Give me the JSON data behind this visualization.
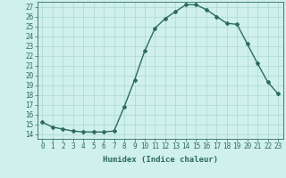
{
  "xlabel": "Humidex (Indice chaleur)",
  "x": [
    0,
    1,
    2,
    3,
    4,
    5,
    6,
    7,
    8,
    9,
    10,
    11,
    12,
    13,
    14,
    15,
    16,
    17,
    18,
    19,
    20,
    21,
    22,
    23
  ],
  "y": [
    15.2,
    14.7,
    14.5,
    14.3,
    14.2,
    14.2,
    14.2,
    14.3,
    16.8,
    19.5,
    22.5,
    24.8,
    25.8,
    26.5,
    27.2,
    27.2,
    26.7,
    26.0,
    25.3,
    25.2,
    23.2,
    21.2,
    19.3,
    18.1
  ],
  "ylim": [
    13.5,
    27.5
  ],
  "xlim": [
    -0.5,
    23.5
  ],
  "yticks": [
    14,
    15,
    16,
    17,
    18,
    19,
    20,
    21,
    22,
    23,
    24,
    25,
    26,
    27
  ],
  "xticks": [
    0,
    1,
    2,
    3,
    4,
    5,
    6,
    7,
    8,
    9,
    10,
    11,
    12,
    13,
    14,
    15,
    16,
    17,
    18,
    19,
    20,
    21,
    22,
    23
  ],
  "line_color": "#2d6b5e",
  "marker_color": "#2d6b5e",
  "bg_color": "#cff0eb",
  "grid_color": "#aad8d0",
  "tick_label_color": "#2d6b5e",
  "xlabel_fontsize": 6.5,
  "tick_fontsize": 5.5,
  "marker": "D",
  "markersize": 2.0,
  "linewidth": 1.0
}
